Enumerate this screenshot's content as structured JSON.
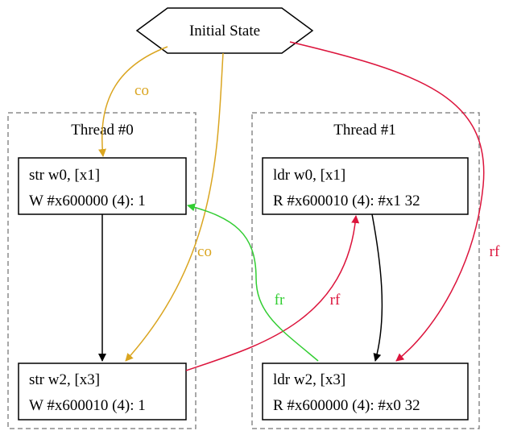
{
  "colors": {
    "co": "#daa520",
    "rf": "#dc143c",
    "fr": "#32cd32",
    "po": "#000000",
    "cluster_border": "#8c8c8c"
  },
  "initial_state": {
    "label": "Initial State"
  },
  "clusters": [
    {
      "title": "Thread #0",
      "nodes": [
        {
          "line1": "str w0, [x1]",
          "line2": "W #x600000 (4): 1"
        },
        {
          "line1": "str w2, [x3]",
          "line2": "W #x600010 (4): 1"
        }
      ]
    },
    {
      "title": "Thread #1",
      "nodes": [
        {
          "line1": "ldr w0, [x1]",
          "line2": "R #x600010 (4): #x1 32"
        },
        {
          "line1": "ldr w2, [x3]",
          "line2": "R #x600000 (4): #x0 32"
        }
      ]
    }
  ],
  "edge_labels": {
    "co_init_t0a": "co",
    "co_t0a_t0b": "co",
    "rf_init_t1b": "rf",
    "rf_t0b_t1a": "rf",
    "fr_t1b_t0a": "fr"
  }
}
